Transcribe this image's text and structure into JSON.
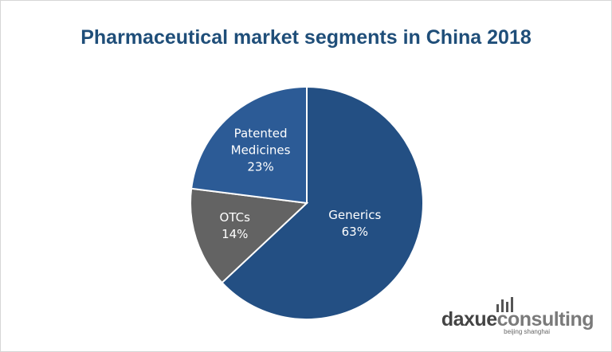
{
  "chart_data": {
    "type": "pie",
    "title": "Pharmaceutical market segments in China 2018",
    "categories": [
      "Generics",
      "OTCs",
      "Patented Medicines"
    ],
    "values": [
      63,
      14,
      23
    ],
    "value_labels": [
      "63%",
      "14%",
      "23%"
    ],
    "colors": [
      "#234f83",
      "#636363",
      "#2c5b96"
    ]
  },
  "logo": {
    "parts": [
      "daxue",
      "consulting"
    ],
    "tagline": "beijing shanghai"
  }
}
